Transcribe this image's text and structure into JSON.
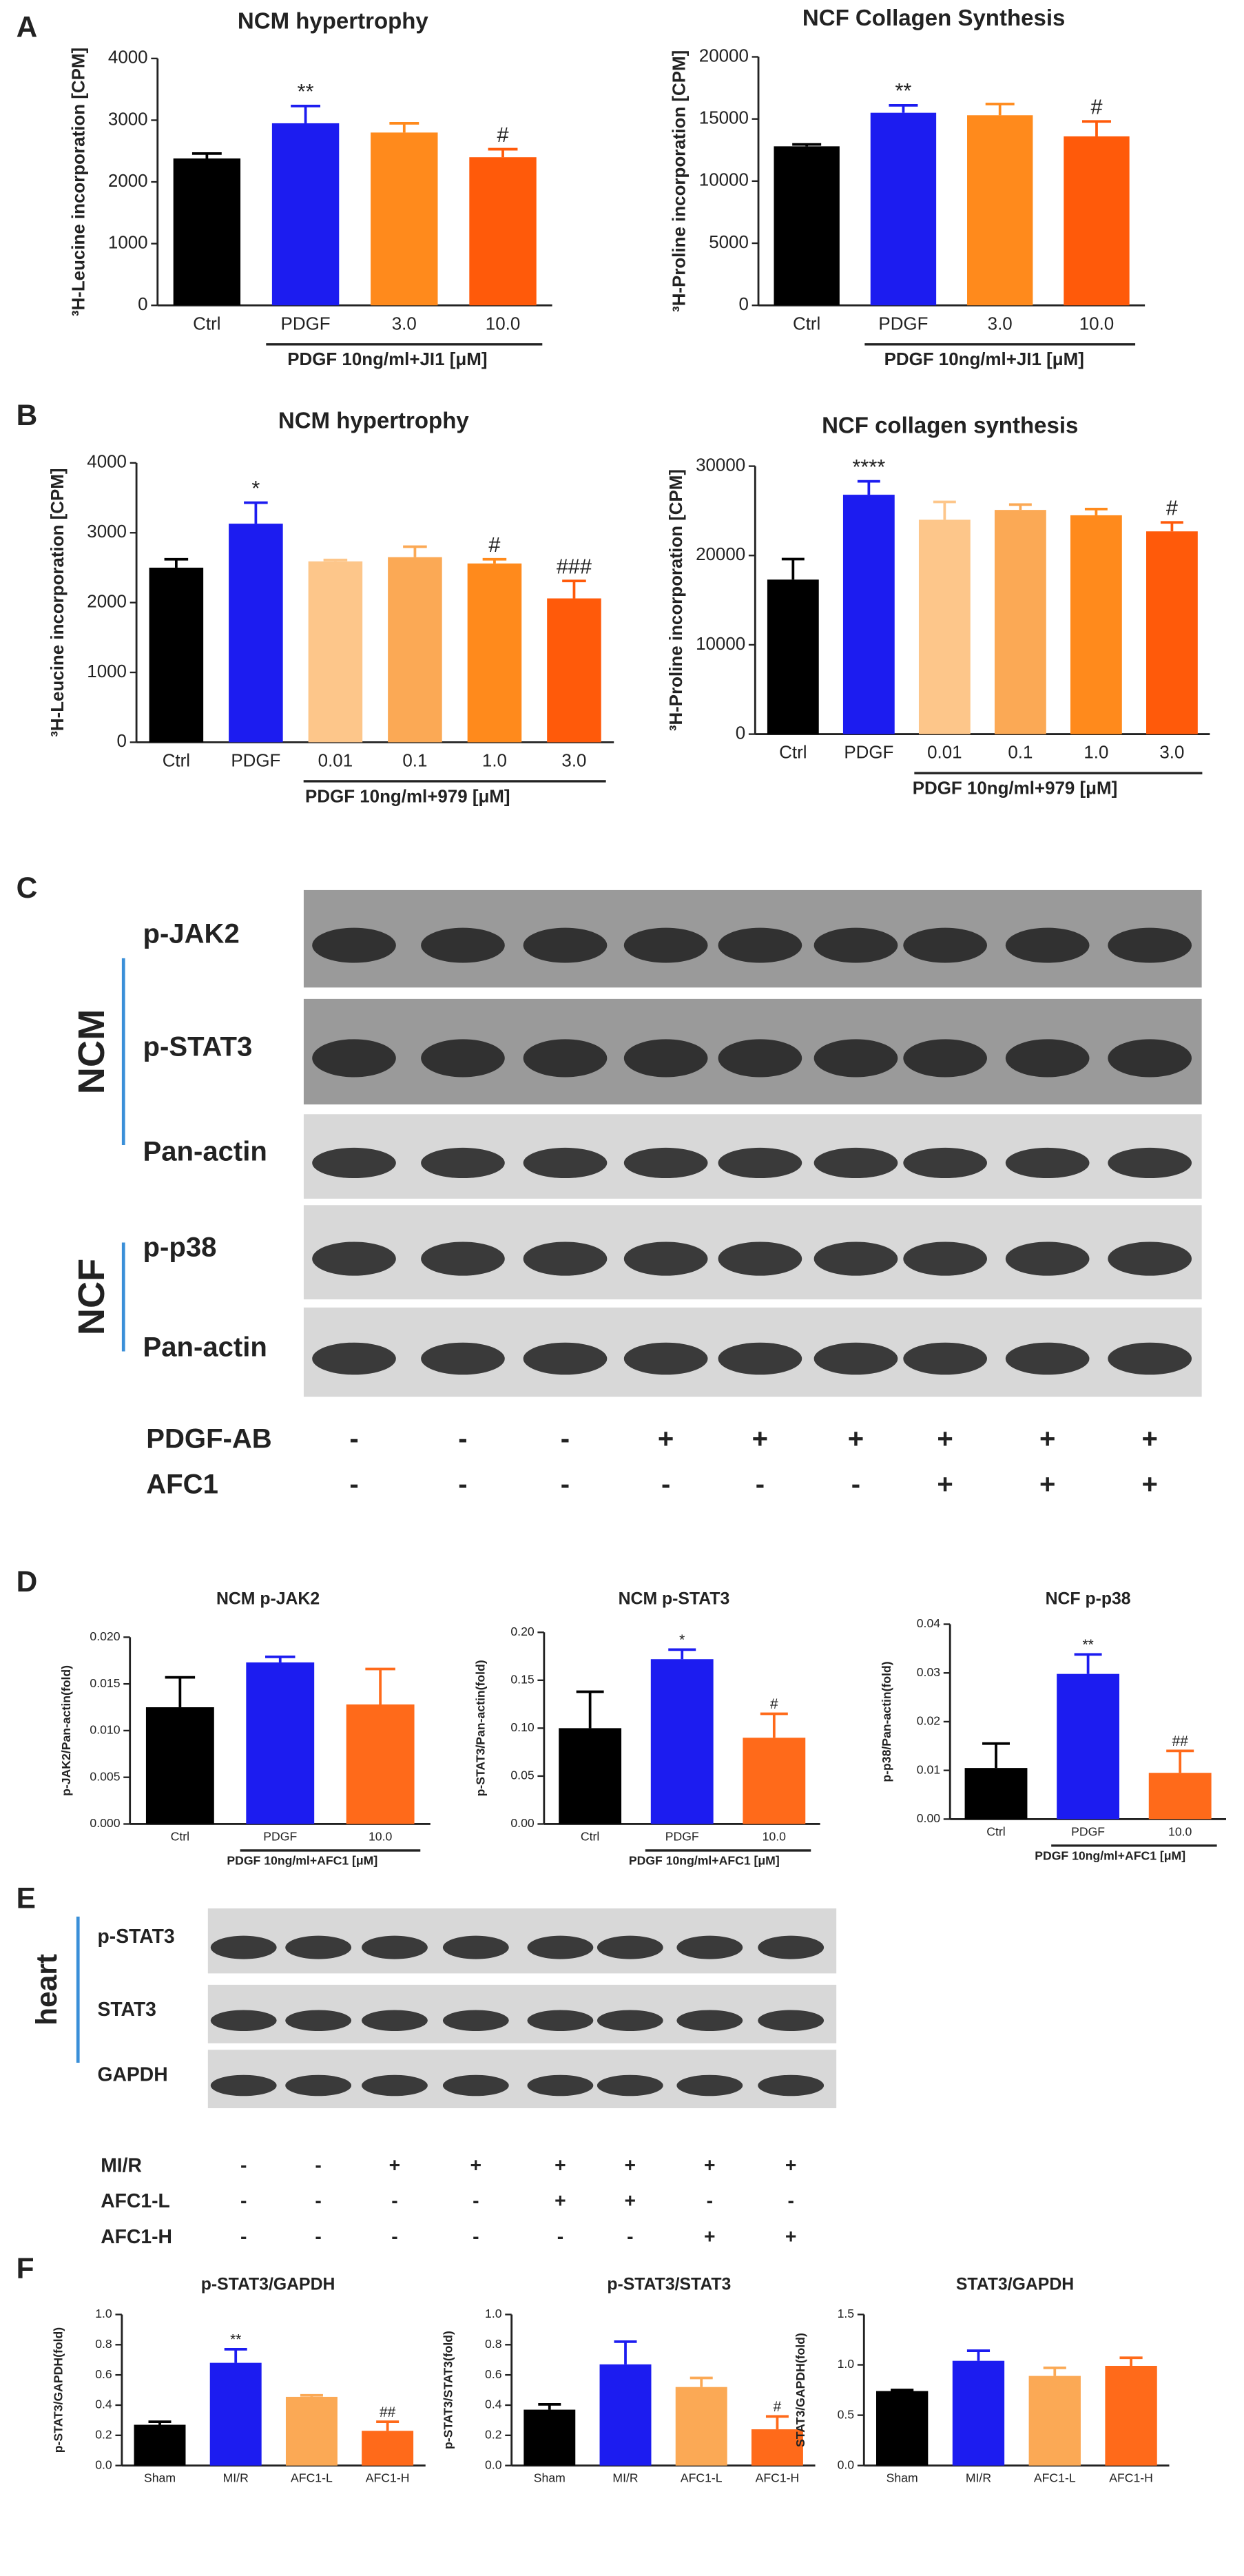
{
  "panel_labels": [
    "A",
    "B",
    "C",
    "D",
    "E",
    "F"
  ],
  "chart_data": [
    {
      "type": "bar",
      "title": "NCM hypertrophy",
      "ylabel": "³H-Leucine incorporation [CPM]",
      "categories": [
        "Ctrl",
        "PDGF",
        "3.0",
        "10.0"
      ],
      "values": [
        2380,
        2950,
        2800,
        2400
      ],
      "errors": [
        80,
        280,
        150,
        130
      ],
      "colors": [
        "#000000",
        "#1c1cf0",
        "#ff8a1c",
        "#ff5a0a"
      ],
      "annotations": [
        null,
        "**",
        null,
        "#"
      ],
      "group_label": "PDGF 10ng/ml+JI1 [μM]",
      "ylim": [
        0,
        4000
      ],
      "yticks": [
        0,
        1000,
        2000,
        3000,
        4000
      ]
    },
    {
      "type": "bar",
      "title": "NCF Collagen Synthesis",
      "ylabel": "³H-Proline incorporation [CPM]",
      "categories": [
        "Ctrl",
        "PDGF",
        "3.0",
        "10.0"
      ],
      "values": [
        12800,
        15500,
        15300,
        13600
      ],
      "errors": [
        150,
        600,
        900,
        1200
      ],
      "colors": [
        "#000000",
        "#1c1cf0",
        "#ff8a1c",
        "#ff5a0a"
      ],
      "annotations": [
        null,
        "**",
        null,
        "#"
      ],
      "group_label": "PDGF 10ng/ml+JI1 [μM]",
      "ylim": [
        0,
        20000
      ],
      "yticks": [
        0,
        5000,
        10000,
        15000,
        20000
      ]
    },
    {
      "type": "bar",
      "title": "NCM hypertrophy",
      "ylabel": "³H-Leucine incorporation [CPM]",
      "categories": [
        "Ctrl",
        "PDGF",
        "0.01",
        "0.1",
        "1.0",
        "3.0"
      ],
      "values": [
        2500,
        3130,
        2590,
        2650,
        2560,
        2060
      ],
      "errors": [
        120,
        300,
        20,
        150,
        60,
        250
      ],
      "colors": [
        "#000000",
        "#1c1cf0",
        "#fdc68a",
        "#fba955",
        "#ff8a1c",
        "#ff5a0a"
      ],
      "annotations": [
        null,
        "*",
        null,
        null,
        "#",
        "###"
      ],
      "group_label": "PDGF 10ng/ml+979 [μM]",
      "ylim": [
        0,
        4000
      ],
      "yticks": [
        0,
        1000,
        2000,
        3000,
        4000
      ]
    },
    {
      "type": "bar",
      "title": "NCF collagen synthesis",
      "ylabel": "³H-Proline incorporation [CPM]",
      "categories": [
        "Ctrl",
        "PDGF",
        "0.01",
        "0.1",
        "1.0",
        "3.0"
      ],
      "values": [
        17300,
        26800,
        24000,
        25100,
        24500,
        22700
      ],
      "errors": [
        2300,
        1500,
        2000,
        600,
        700,
        1000
      ],
      "colors": [
        "#000000",
        "#1c1cf0",
        "#fdc68a",
        "#fba955",
        "#ff8a1c",
        "#ff5a0a"
      ],
      "annotations": [
        null,
        "****",
        null,
        null,
        null,
        "#"
      ],
      "group_label": "PDGF 10ng/ml+979 [μM]",
      "ylim": [
        0,
        30000
      ],
      "yticks": [
        0,
        10000,
        20000,
        30000
      ]
    },
    {
      "type": "bar",
      "title": "NCM p-JAK2",
      "ylabel": "p-JAK2/Pan-actin(fold)",
      "categories": [
        "Ctrl",
        "PDGF",
        "10.0"
      ],
      "values": [
        0.0125,
        0.0173,
        0.0128
      ],
      "errors": [
        0.0032,
        0.0006,
        0.0038
      ],
      "colors": [
        "#000000",
        "#1c1cf0",
        "#ff6a1a"
      ],
      "annotations": [
        null,
        null,
        null
      ],
      "group_label": "PDGF 10ng/ml+AFC1 [μM]",
      "ylim": [
        0,
        0.02
      ],
      "yticks": [
        {
          "value": 0,
          "label": "0.000"
        },
        {
          "value": 0.005,
          "label": "0.005"
        },
        {
          "value": 0.01,
          "label": "0.010"
        },
        {
          "value": 0.015,
          "label": "0.015"
        },
        {
          "value": 0.02,
          "label": "0.020"
        }
      ]
    },
    {
      "type": "bar",
      "title": "NCM p-STAT3",
      "ylabel": "p-STAT3/Pan-actin(fold)",
      "categories": [
        "Ctrl",
        "PDGF",
        "10.0"
      ],
      "values": [
        0.1,
        0.172,
        0.09
      ],
      "errors": [
        0.038,
        0.01,
        0.025
      ],
      "colors": [
        "#000000",
        "#1c1cf0",
        "#ff6a1a"
      ],
      "annotations": [
        null,
        "*",
        "#"
      ],
      "group_label": "PDGF 10ng/ml+AFC1 [μM]",
      "ylim": [
        0,
        0.2
      ],
      "yticks": [
        {
          "value": 0,
          "label": "0.00"
        },
        0.05,
        {
          "value": 0.1,
          "label": "0.10"
        },
        0.15,
        {
          "value": 0.2,
          "label": "0.20"
        }
      ]
    },
    {
      "type": "bar",
      "title": "NCF p-p38",
      "ylabel": "p-p38/Pan-actin(fold)",
      "categories": [
        "Ctrl",
        "PDGF",
        "10.0"
      ],
      "values": [
        0.0105,
        0.0298,
        0.0095
      ],
      "errors": [
        0.005,
        0.004,
        0.0045
      ],
      "colors": [
        "#000000",
        "#1c1cf0",
        "#ff6a1a"
      ],
      "annotations": [
        null,
        "**",
        "##"
      ],
      "group_label": "PDGF 10ng/ml+AFC1 [μM]",
      "ylim": [
        0,
        0.04
      ],
      "yticks": [
        {
          "value": 0,
          "label": "0.00"
        },
        0.01,
        0.02,
        0.03,
        0.04
      ]
    },
    {
      "type": "bar",
      "title": "p-STAT3/GAPDH",
      "ylabel": "p-STAT3/GAPDH(fold)",
      "categories": [
        "Sham",
        "MI/R",
        "AFC1-L",
        "AFC1-H"
      ],
      "values": [
        0.27,
        0.68,
        0.455,
        0.23
      ],
      "errors": [
        0.02,
        0.09,
        0.01,
        0.06
      ],
      "colors": [
        "#000000",
        "#1c1cf0",
        "#fba955",
        "#ff6a1a"
      ],
      "annotations": [
        null,
        "**",
        null,
        "##"
      ],
      "ylim": [
        0,
        1
      ],
      "yticks": [
        {
          "value": 0,
          "label": "0.0"
        },
        0.2,
        0.4,
        0.6,
        0.8,
        {
          "value": 1,
          "label": "1.0"
        }
      ]
    },
    {
      "type": "bar",
      "title": "p-STAT3/STAT3",
      "ylabel": "p-STAT3/STAT3(fold)",
      "categories": [
        "Sham",
        "MI/R",
        "AFC1-L",
        "AFC1-H"
      ],
      "values": [
        0.37,
        0.67,
        0.52,
        0.24
      ],
      "errors": [
        0.035,
        0.15,
        0.06,
        0.085
      ],
      "colors": [
        "#000000",
        "#1c1cf0",
        "#fba955",
        "#ff6a1a"
      ],
      "annotations": [
        null,
        null,
        null,
        "#"
      ],
      "ylim": [
        0,
        1
      ],
      "yticks": [
        {
          "value": 0,
          "label": "0.0"
        },
        0.2,
        0.4,
        0.6,
        0.8,
        {
          "value": 1,
          "label": "1.0"
        }
      ]
    },
    {
      "type": "bar",
      "title": "STAT3/GAPDH",
      "ylabel": "STAT3/GAPDH(fold)",
      "categories": [
        "Sham",
        "MI/R",
        "AFC1-L",
        "AFC1-H"
      ],
      "values": [
        0.74,
        1.04,
        0.89,
        0.99
      ],
      "errors": [
        0.01,
        0.1,
        0.08,
        0.08
      ],
      "colors": [
        "#000000",
        "#1c1cf0",
        "#fba955",
        "#ff6a1a"
      ],
      "annotations": [
        null,
        null,
        null,
        null
      ],
      "ylim": [
        0,
        1.5
      ],
      "yticks": [
        {
          "value": 0,
          "label": "0.0"
        },
        0.5,
        {
          "value": 1,
          "label": "1.0"
        },
        1.5
      ]
    }
  ],
  "blot_c": {
    "rows": [
      "p-JAK2",
      "p-STAT3",
      "Pan-actin",
      "p-p38",
      "Pan-actin"
    ],
    "groups": [
      "NCM",
      "NCF"
    ],
    "treatments": [
      {
        "name": "PDGF-AB",
        "signs": [
          "-",
          "-",
          "-",
          "+",
          "+",
          "+",
          "+",
          "+",
          "+"
        ]
      },
      {
        "name": "AFC1",
        "signs": [
          "-",
          "-",
          "-",
          "-",
          "-",
          "-",
          "+",
          "+",
          "+"
        ]
      }
    ]
  },
  "blot_e": {
    "rows": [
      "p-STAT3",
      "STAT3",
      "GAPDH"
    ],
    "groups": [
      "heart"
    ],
    "treatments": [
      {
        "name": "MI/R",
        "signs": [
          "-",
          "-",
          "+",
          "+",
          "+",
          "+",
          "+",
          "+"
        ]
      },
      {
        "name": "AFC1-L",
        "signs": [
          "-",
          "-",
          "-",
          "-",
          "+",
          "+",
          "-",
          "-"
        ]
      },
      {
        "name": "AFC1-H",
        "signs": [
          "-",
          "-",
          "-",
          "-",
          "-",
          "-",
          "+",
          "+"
        ]
      }
    ]
  }
}
